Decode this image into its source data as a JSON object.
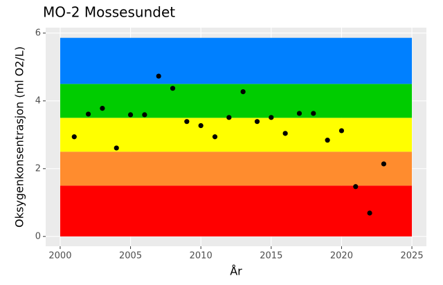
{
  "chart_data": {
    "type": "scatter",
    "title": "MO-2 Mossesundet",
    "x_label": "År",
    "y_label": "Oksygenkonsentrasjon (ml O2/L)",
    "x": [
      2001,
      2002,
      2003,
      2004,
      2005,
      2006,
      2007,
      2008,
      2009,
      2010,
      2011,
      2012,
      2013,
      2014,
      2015,
      2016,
      2017,
      2018,
      2019,
      2020,
      2021,
      2022,
      2023
    ],
    "values": [
      2.94,
      3.61,
      3.78,
      2.61,
      3.59,
      3.59,
      4.73,
      4.37,
      3.39,
      3.27,
      2.94,
      3.51,
      4.27,
      3.39,
      3.51,
      3.04,
      3.63,
      3.63,
      2.84,
      3.12,
      1.47,
      0.69,
      2.14
    ],
    "color": "#000000",
    "bands": [
      {
        "from": 0,
        "to": 1.5,
        "color": "#ff0000"
      },
      {
        "from": 1.5,
        "to": 2.5,
        "color": "#ff8c2e"
      },
      {
        "from": 2.5,
        "to": 3.5,
        "color": "#ffff00"
      },
      {
        "from": 3.5,
        "to": 4.5,
        "color": "#00cc00"
      },
      {
        "from": 4.5,
        "to": 5.86,
        "color": "#0080ff"
      }
    ],
    "band_xlim": [
      2000,
      2025
    ],
    "xlim": [
      1998.97,
      2026.03
    ],
    "ylim": [
      -0.29,
      6.16
    ],
    "xticks": [
      2000,
      2005,
      2010,
      2015,
      2020,
      2025
    ],
    "yticks": [
      0,
      2,
      4,
      6
    ],
    "grid": true
  }
}
